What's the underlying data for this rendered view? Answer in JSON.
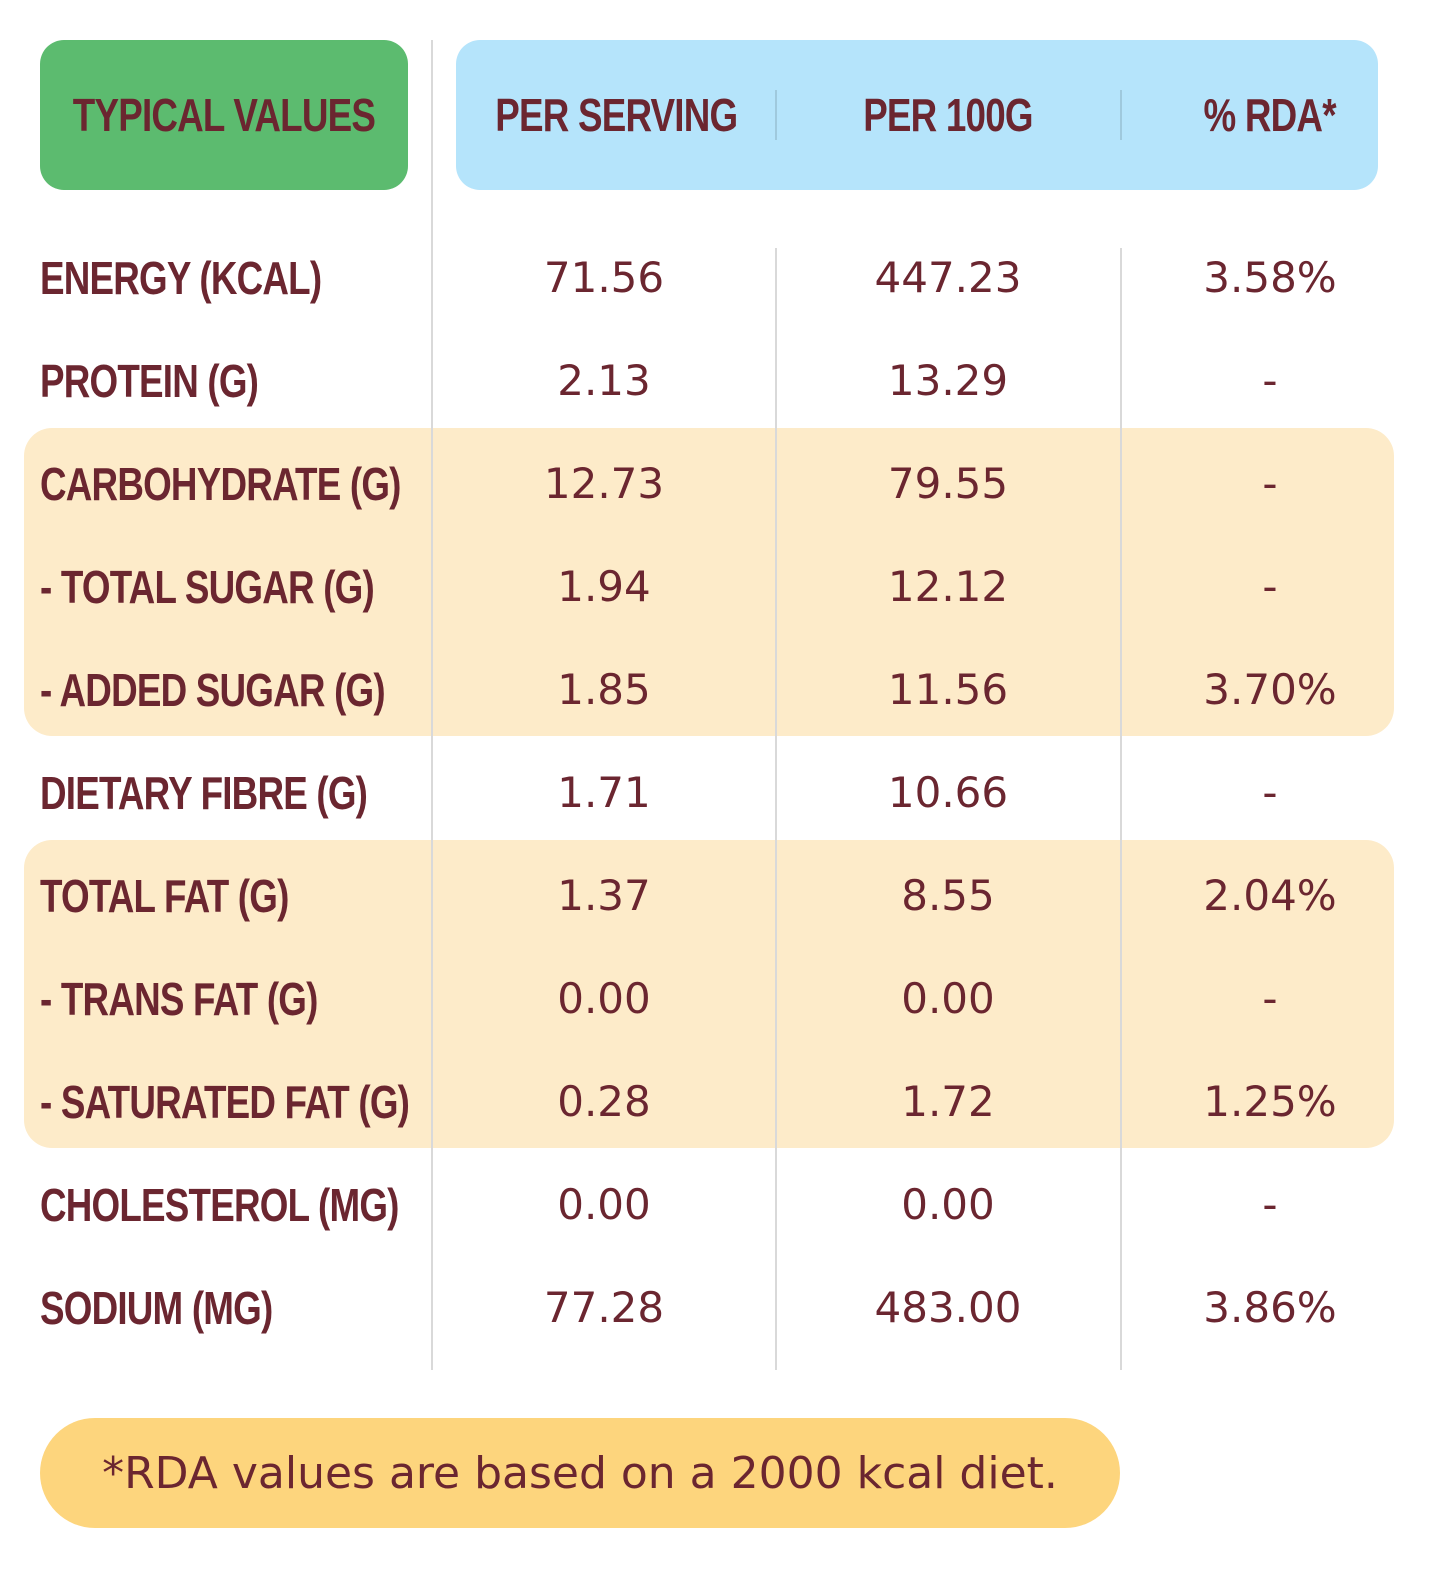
{
  "header": {
    "typical_values": "TYPICAL VALUES",
    "per_serving": "PER SERVING",
    "per_100g": "PER 100G",
    "rda": "% RDA*"
  },
  "rows": [
    {
      "label": "ENERGY (KCAL)",
      "per_serving": "71.56",
      "per_100g": "447.23",
      "rda": "3.58%"
    },
    {
      "label": "PROTEIN (G)",
      "per_serving": "2.13",
      "per_100g": "13.29",
      "rda": "-"
    },
    {
      "label": "CARBOHYDRATE (G)",
      "per_serving": "12.73",
      "per_100g": "79.55",
      "rda": "-"
    },
    {
      "label": "- TOTAL SUGAR (G)",
      "per_serving": "1.94",
      "per_100g": "12.12",
      "rda": "-"
    },
    {
      "label": "- ADDED SUGAR (G)",
      "per_serving": "1.85",
      "per_100g": "11.56",
      "rda": "3.70%"
    },
    {
      "label": "DIETARY FIBRE (G)",
      "per_serving": "1.71",
      "per_100g": "10.66",
      "rda": "-"
    },
    {
      "label": "TOTAL FAT (G)",
      "per_serving": "1.37",
      "per_100g": "8.55",
      "rda": "2.04%"
    },
    {
      "label": "- TRANS FAT (G)",
      "per_serving": "0.00",
      "per_100g": "0.00",
      "rda": "-"
    },
    {
      "label": "- SATURATED FAT (G)",
      "per_serving": "0.28",
      "per_100g": "1.72",
      "rda": "1.25%"
    },
    {
      "label": "CHOLESTEROL (MG)",
      "per_serving": "0.00",
      "per_100g": "0.00",
      "rda": "-"
    },
    {
      "label": "SODIUM (MG)",
      "per_serving": "77.28",
      "per_100g": "483.00",
      "rda": "3.86%"
    }
  ],
  "footnote": "*RDA values are based on a 2000 kcal diet.",
  "colors": {
    "header_left": "#5cbb6f",
    "header_right": "#b5e4fb",
    "highlight_band": "#fdebc9",
    "footnote_bg": "#fdd57d",
    "text": "#6b2630"
  }
}
